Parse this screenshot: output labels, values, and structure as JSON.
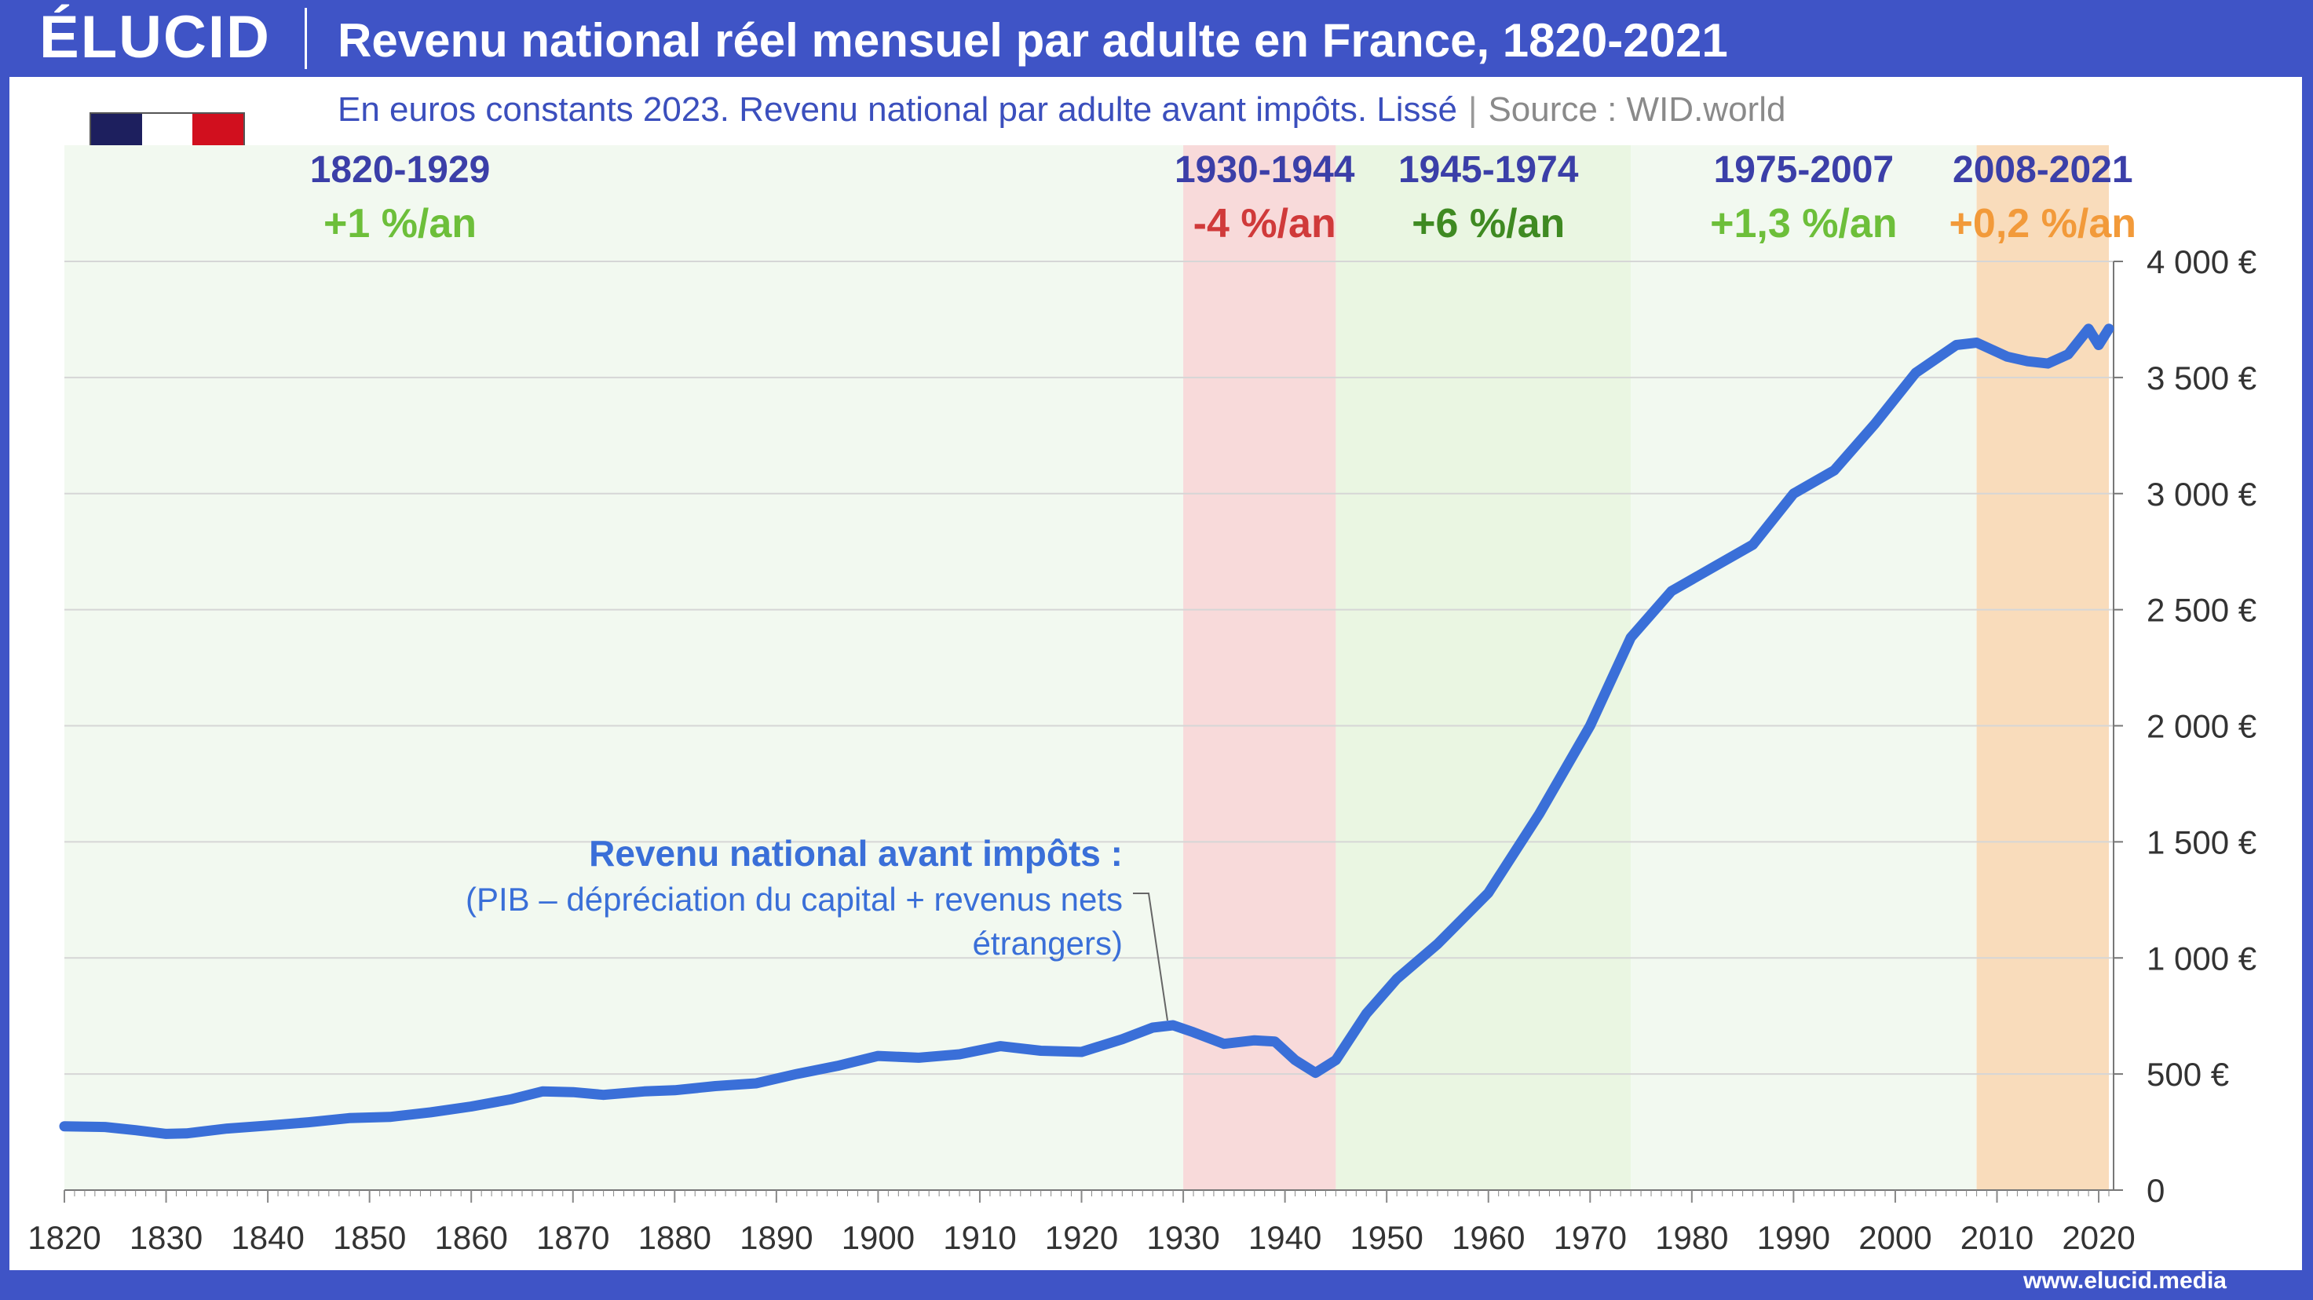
{
  "brand": {
    "logo": "ÉLUCID",
    "url": "www.elucid.media"
  },
  "chart_data": {
    "type": "line",
    "title": "Revenu national réel mensuel par adulte en France, 1820-2021",
    "subtitle": "En euros constants 2023. Revenu national par adulte avant impôts. Lissé",
    "source": "Source : WID.world",
    "xlim": [
      1820,
      2021
    ],
    "ylim": [
      0,
      4000
    ],
    "x_ticks": [
      1820,
      1830,
      1840,
      1850,
      1860,
      1870,
      1880,
      1890,
      1900,
      1910,
      1920,
      1930,
      1940,
      1950,
      1960,
      1970,
      1980,
      1990,
      2000,
      2010,
      2020
    ],
    "y_ticks": [
      {
        "value": 0,
        "label": "0"
      },
      {
        "value": 500,
        "label": "500 €"
      },
      {
        "value": 1000,
        "label": "1 000 €"
      },
      {
        "value": 1500,
        "label": "1 500 €"
      },
      {
        "value": 2000,
        "label": "2 000 €"
      },
      {
        "value": 2500,
        "label": "2 500 €"
      },
      {
        "value": 3000,
        "label": "3 000 €"
      },
      {
        "value": 3500,
        "label": "3 500 €"
      },
      {
        "value": 4000,
        "label": "4 000 €"
      }
    ],
    "grid": true,
    "y_axis_position": "right",
    "line_color": "#3a6fd8",
    "series": [
      {
        "name": "Revenu national avant impôts :",
        "note": "(PIB – dépréciation du capital + revenus nets étrangers)",
        "points": [
          [
            1820,
            275
          ],
          [
            1824,
            272
          ],
          [
            1827,
            258
          ],
          [
            1830,
            242
          ],
          [
            1832,
            244
          ],
          [
            1836,
            265
          ],
          [
            1840,
            278
          ],
          [
            1844,
            292
          ],
          [
            1848,
            310
          ],
          [
            1852,
            315
          ],
          [
            1856,
            335
          ],
          [
            1860,
            360
          ],
          [
            1864,
            392
          ],
          [
            1867,
            425
          ],
          [
            1870,
            422
          ],
          [
            1873,
            410
          ],
          [
            1877,
            425
          ],
          [
            1880,
            430
          ],
          [
            1884,
            448
          ],
          [
            1888,
            460
          ],
          [
            1892,
            500
          ],
          [
            1896,
            535
          ],
          [
            1900,
            578
          ],
          [
            1904,
            570
          ],
          [
            1908,
            585
          ],
          [
            1912,
            620
          ],
          [
            1916,
            600
          ],
          [
            1920,
            595
          ],
          [
            1924,
            650
          ],
          [
            1927,
            700
          ],
          [
            1929,
            710
          ],
          [
            1931,
            680
          ],
          [
            1934,
            630
          ],
          [
            1937,
            645
          ],
          [
            1939,
            640
          ],
          [
            1941,
            560
          ],
          [
            1943,
            505
          ],
          [
            1945,
            560
          ],
          [
            1948,
            760
          ],
          [
            1951,
            910
          ],
          [
            1955,
            1060
          ],
          [
            1960,
            1280
          ],
          [
            1965,
            1620
          ],
          [
            1970,
            2000
          ],
          [
            1974,
            2380
          ],
          [
            1978,
            2580
          ],
          [
            1982,
            2680
          ],
          [
            1986,
            2780
          ],
          [
            1990,
            3000
          ],
          [
            1994,
            3100
          ],
          [
            1998,
            3300
          ],
          [
            2002,
            3520
          ],
          [
            2006,
            3640
          ],
          [
            2008,
            3650
          ],
          [
            2011,
            3590
          ],
          [
            2013,
            3570
          ],
          [
            2015,
            3560
          ],
          [
            2017,
            3600
          ],
          [
            2019,
            3710
          ],
          [
            2020,
            3640
          ],
          [
            2021,
            3710
          ]
        ]
      }
    ],
    "periods": [
      {
        "label": "1820-1929",
        "rate": "+1 %/an",
        "start": 1820,
        "end": 1930,
        "fill": "#f2f9f0",
        "rate_color": "#6dbf3a"
      },
      {
        "label": "1930-1944",
        "rate": "-4 %/an",
        "start": 1930,
        "end": 1945,
        "fill": "#f8dada",
        "rate_color": "#d03a3a"
      },
      {
        "label": "1945-1974",
        "rate": "+6 %/an",
        "start": 1945,
        "end": 1974,
        "fill": "#eaf6e2",
        "rate_color": "#3f8a22"
      },
      {
        "label": "1975-2007",
        "rate": "+1,3 %/an",
        "start": 1974,
        "end": 2008,
        "fill": "#f2f9f0",
        "rate_color": "#6dbf3a"
      },
      {
        "label": "2008-2021",
        "rate": "+0,2 %/an",
        "start": 2008,
        "end": 2021,
        "fill": "#f9dcbb",
        "rate_color": "#f29a3a"
      }
    ],
    "period_label_color": "#3b3fa8"
  },
  "flag": {
    "colors": [
      "#1d1f5e",
      "#ffffff",
      "#d10f1e"
    ]
  }
}
